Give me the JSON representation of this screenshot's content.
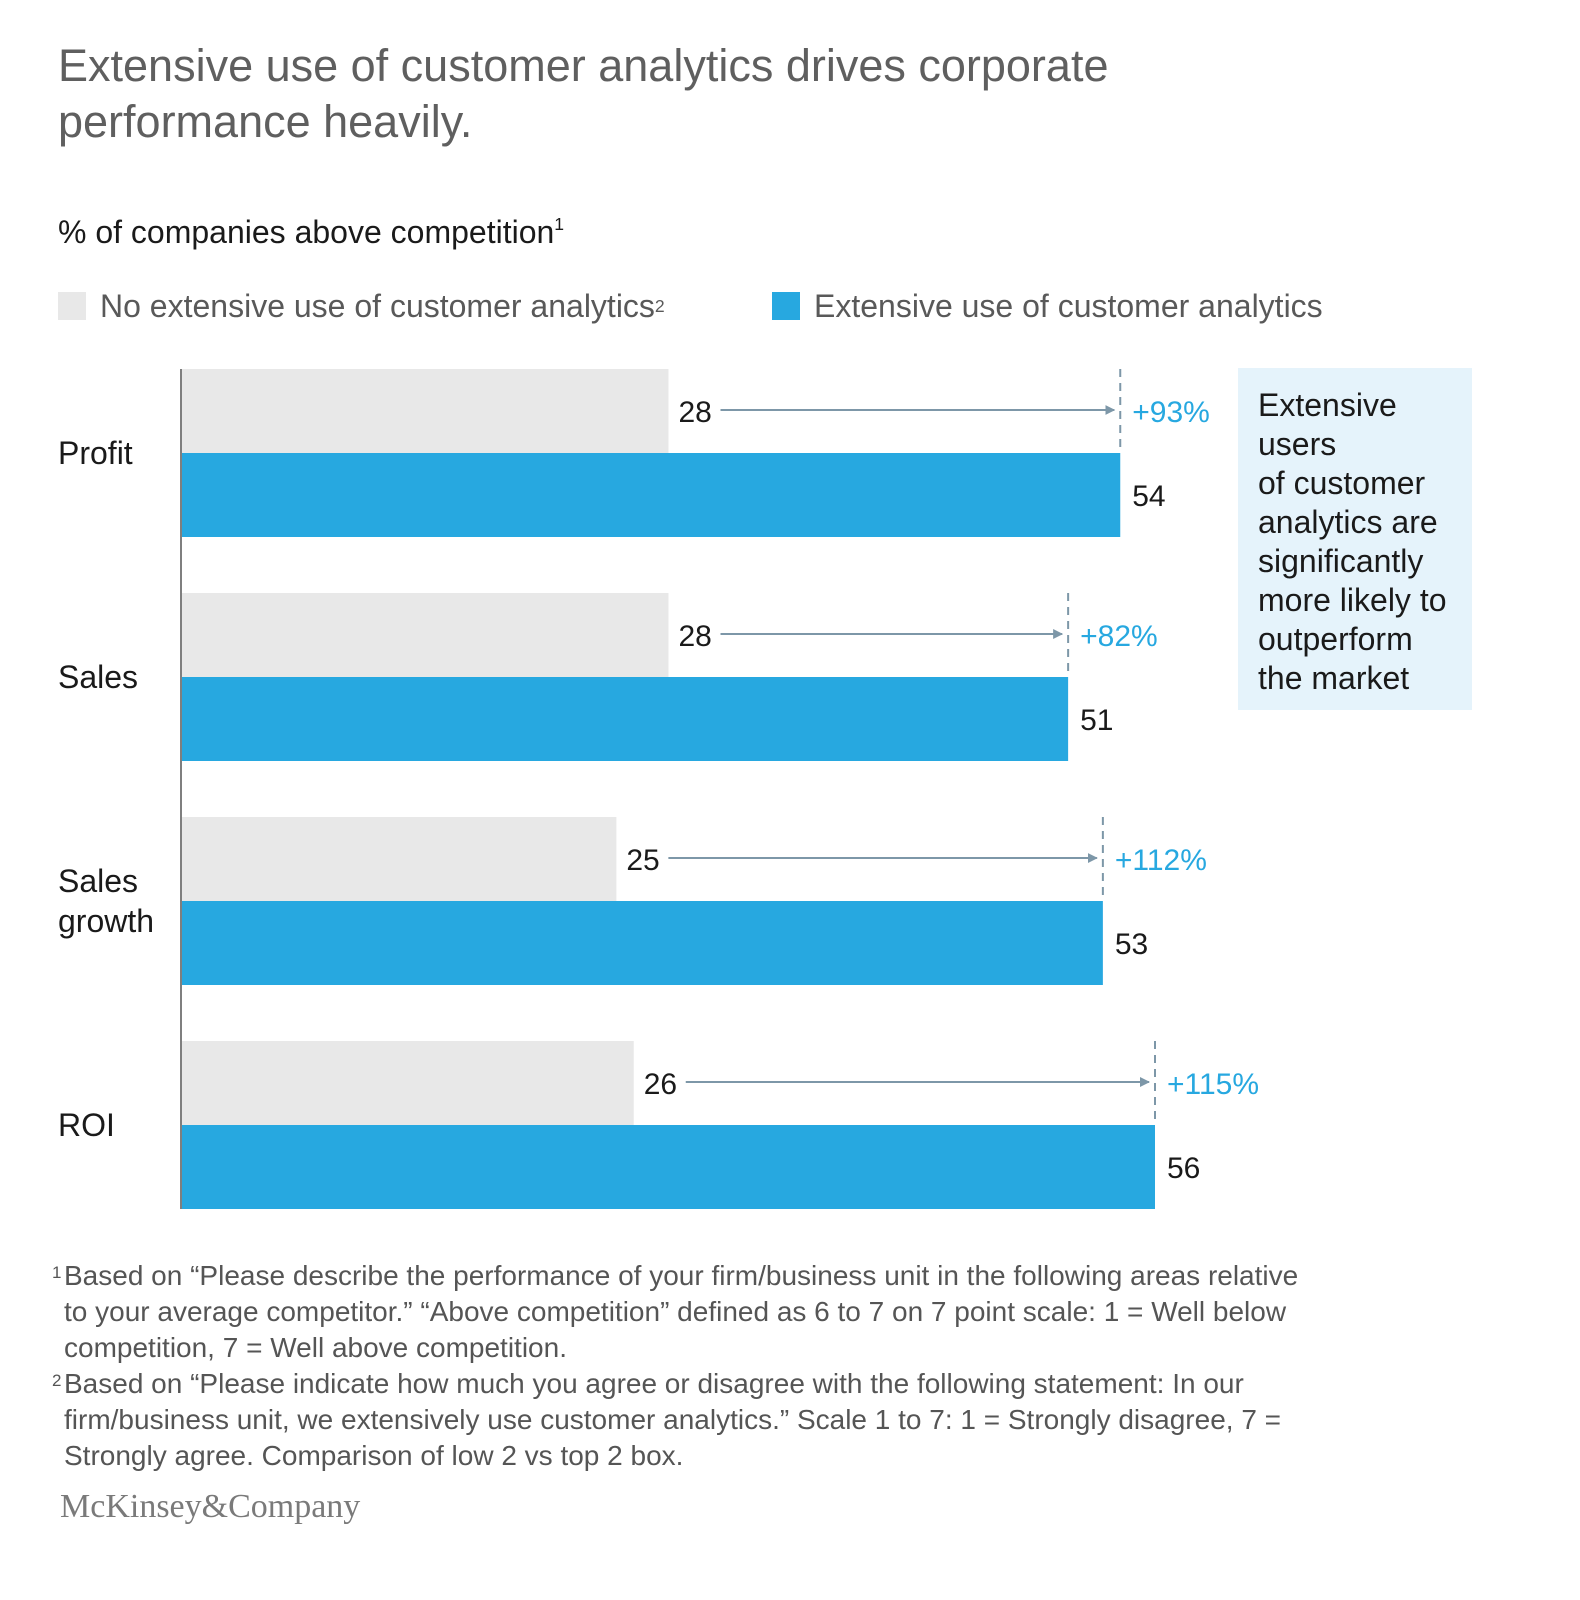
{
  "title": "Extensive use of customer analytics drives corporate performance heavily.",
  "subtitle": "% of companies above competition",
  "subtitle_sup": "1",
  "legend": {
    "no_extensive": "No extensive use of customer analytics",
    "no_extensive_sup": "2",
    "extensive": "Extensive use of customer analytics"
  },
  "colors": {
    "no_extensive": "#e8e8e8",
    "extensive": "#27a8e0",
    "arrow": "#7d97a8",
    "pct_label": "#27a8e0",
    "callout_bg": "#e5f3fb"
  },
  "chart_data": {
    "type": "bar",
    "orientation": "horizontal",
    "categories": [
      "Profit",
      "Sales",
      "Sales growth",
      "ROI"
    ],
    "category_lines": [
      [
        "Profit"
      ],
      [
        "Sales"
      ],
      [
        "Sales",
        "growth"
      ],
      [
        "ROI"
      ]
    ],
    "series": [
      {
        "name": "No extensive use of customer analytics",
        "values": [
          28,
          28,
          25,
          26
        ]
      },
      {
        "name": "Extensive use of customer analytics",
        "values": [
          54,
          51,
          53,
          56
        ]
      }
    ],
    "uplift_labels": [
      "+93%",
      "+82%",
      "+112%",
      "+115%"
    ],
    "xlim": [
      0,
      56
    ],
    "grid": false,
    "legend_position": "top-left"
  },
  "callout": {
    "lines": [
      "Extensive",
      "users",
      "of customer",
      "analytics are",
      "significantly",
      "more likely to",
      "outperform",
      "the market"
    ]
  },
  "footnotes": [
    {
      "num": "1",
      "lines": [
        "Based on “Please describe the performance of your firm/business unit in the following areas relative",
        "to your average competitor.” “Above competition” defined as 6 to 7 on 7 point scale: 1 = Well below",
        "competition, 7 = Well above competition."
      ]
    },
    {
      "num": "2",
      "lines": [
        "Based on “Please indicate how much you agree or disagree with the following statement: In our",
        "firm/business unit, we extensively use customer analytics.” Scale 1 to 7: 1 = Strongly disagree, 7 =",
        "Strongly agree. Comparison of low 2 vs top 2 box."
      ]
    }
  ],
  "brand": "McKinsey&Company"
}
